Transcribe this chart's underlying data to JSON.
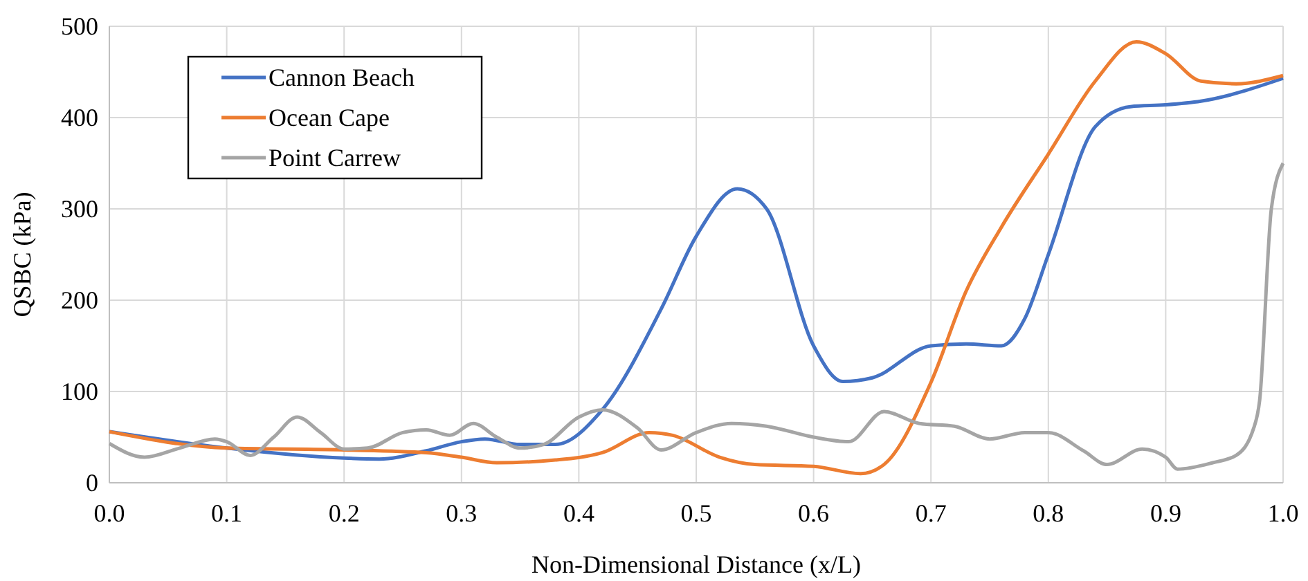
{
  "chart_data": {
    "type": "line",
    "xlabel": "Non-Dimensional Distance (x/L)",
    "ylabel": "QSBC (kPa)",
    "xlim": [
      0,
      1
    ],
    "xticks": [
      {
        "value": 0,
        "label": "0.0"
      },
      0.1,
      0.2,
      0.3,
      0.4,
      0.5,
      0.6,
      0.7,
      0.8,
      0.9,
      {
        "value": 1,
        "label": "1.0"
      }
    ],
    "ylim": [
      0,
      500
    ],
    "yticks": [
      0,
      100,
      200,
      300,
      400,
      500
    ],
    "grid": true,
    "legend": "top left",
    "marker": "none",
    "line_style": "solid",
    "series": [
      {
        "name": "Cannon Beach",
        "color": "#4472c4",
        "x": [
          0,
          0.1,
          0.2,
          0.23,
          0.27,
          0.3,
          0.32,
          0.35,
          0.38,
          0.42,
          0.47,
          0.5,
          0.535,
          0.56,
          0.6,
          0.625,
          0.65,
          0.7,
          0.73,
          0.76,
          0.78,
          0.8,
          0.84,
          0.87,
          0.9,
          0.93,
          1.0
        ],
        "values": [
          56,
          38,
          27,
          26,
          35,
          45,
          48,
          42,
          42,
          80,
          190,
          270,
          322,
          300,
          150,
          111,
          115,
          150,
          152,
          150,
          180,
          250,
          390,
          412,
          414,
          418,
          443
        ]
      },
      {
        "name": "Ocean Cape",
        "color": "#ed7d31",
        "x": [
          0,
          0.1,
          0.2,
          0.27,
          0.3,
          0.33,
          0.38,
          0.42,
          0.46,
          0.48,
          0.52,
          0.55,
          0.6,
          0.64,
          0.66,
          0.7,
          0.73,
          0.76,
          0.8,
          0.84,
          0.875,
          0.9,
          0.93,
          0.96,
          1.0
        ],
        "values": [
          56,
          38,
          36,
          33,
          28,
          22,
          25,
          33,
          55,
          52,
          28,
          20,
          18,
          10,
          20,
          110,
          210,
          280,
          360,
          440,
          483,
          470,
          440,
          437,
          446
        ]
      },
      {
        "name": "Point Carrew",
        "color": "#a5a5a5",
        "x": [
          0,
          0.03,
          0.06,
          0.09,
          0.1,
          0.12,
          0.14,
          0.16,
          0.18,
          0.2,
          0.22,
          0.25,
          0.27,
          0.29,
          0.31,
          0.33,
          0.35,
          0.37,
          0.4,
          0.42,
          0.45,
          0.47,
          0.5,
          0.53,
          0.56,
          0.6,
          0.63,
          0.66,
          0.69,
          0.72,
          0.75,
          0.78,
          0.8,
          0.83,
          0.85,
          0.88,
          0.9,
          0.91,
          0.94,
          0.96,
          0.975,
          0.98,
          0.99,
          1.0
        ],
        "values": [
          43,
          28,
          38,
          48,
          45,
          30,
          50,
          72,
          55,
          37,
          38,
          55,
          58,
          52,
          65,
          50,
          38,
          42,
          72,
          80,
          60,
          36,
          55,
          65,
          62,
          50,
          45,
          78,
          65,
          62,
          48,
          55,
          55,
          35,
          20,
          37,
          28,
          15,
          22,
          30,
          60,
          90,
          300,
          350
        ]
      }
    ]
  }
}
